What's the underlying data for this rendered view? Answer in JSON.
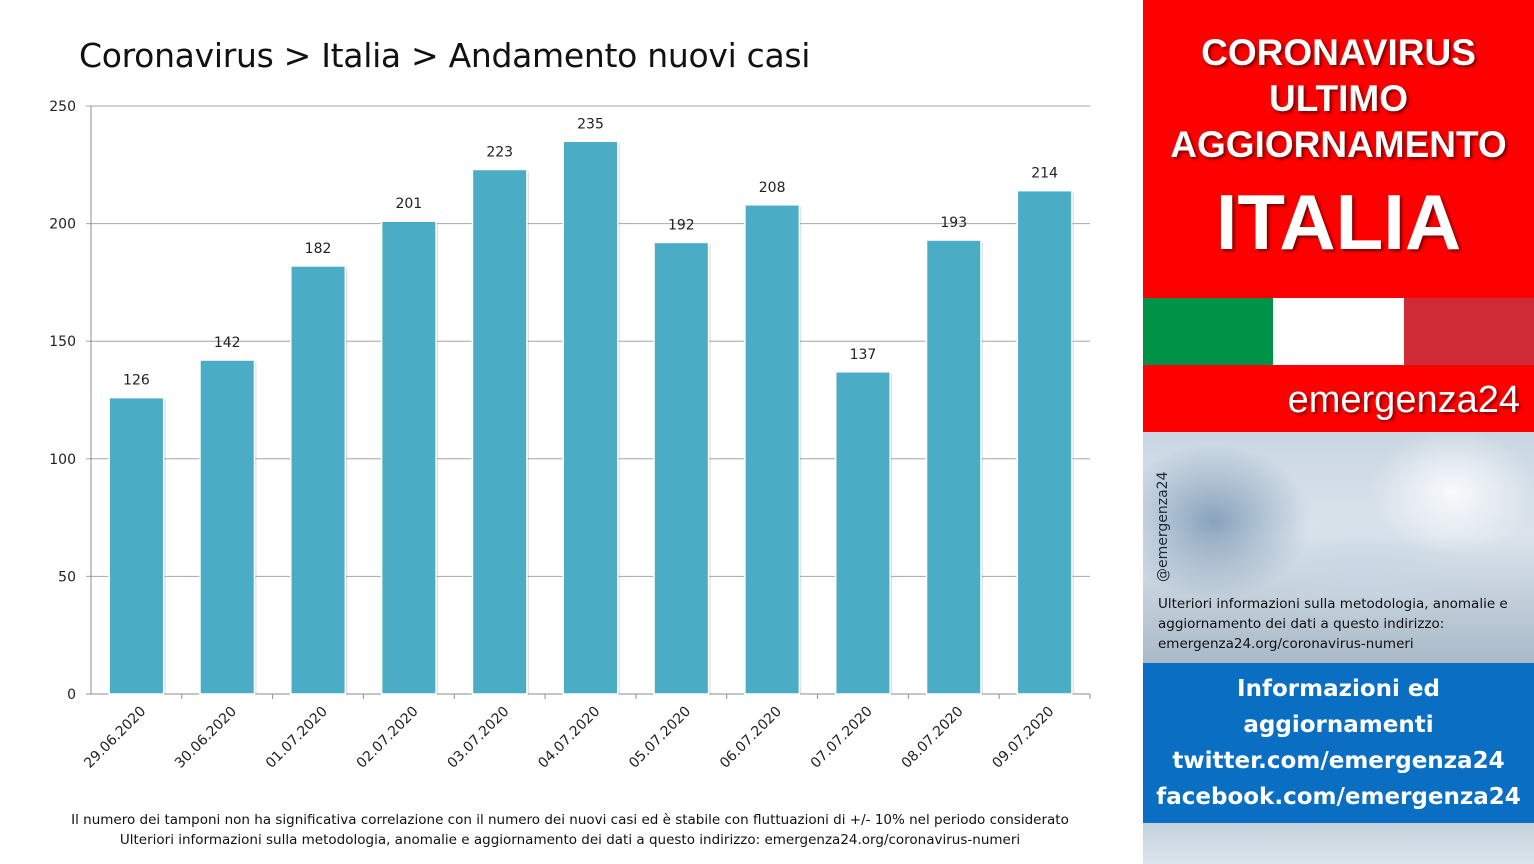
{
  "page": {
    "title": "Coronavirus > Italia > Andamento nuovi casi"
  },
  "chart_data": {
    "type": "bar",
    "title": "Coronavirus > Italia > Andamento nuovi casi",
    "categories": [
      "29.06.2020",
      "30.06.2020",
      "01.07.2020",
      "02.07.2020",
      "03.07.2020",
      "04.07.2020",
      "05.07.2020",
      "06.07.2020",
      "07.07.2020",
      "08.07.2020",
      "09.07.2020"
    ],
    "values": [
      126,
      142,
      182,
      201,
      223,
      235,
      192,
      208,
      137,
      193,
      214
    ],
    "ylim": [
      0,
      250
    ],
    "yticks": [
      0,
      50,
      100,
      150,
      200,
      250
    ],
    "grid": true,
    "bar_color": "#4bacc6",
    "data_labels": true
  },
  "footnotes": {
    "line1": "Il numero dei tamponi non ha significativa correlazione con il numero dei nuovi casi ed è stabile con fluttuazioni di +/- 10% nel periodo considerato",
    "line2": "Ulteriori informazioni sulla metodologia, anomalie e aggiornamento dei dati a questo indirizzo: emergenza24.org/coronavirus-numeri"
  },
  "sidebar": {
    "headline": [
      "CORONAVIRUS",
      "ULTIMO",
      "AGGIORNAMENTO",
      "ITALIA"
    ],
    "flag_colors": [
      "#009246",
      "#ffffff",
      "#ce2b37"
    ],
    "brand": "emergenza24",
    "handle": "@emergenza24",
    "method_text": "Ulteriori informazioni sulla metodologia, anomalie e aggiornamento dei dati a questo indirizzo: emergenza24.org/coronavirus-numeri",
    "info_lines": [
      "Informazioni ed",
      "aggiornamenti",
      "twitter.com/emergenza24",
      "facebook.com/emergenza24"
    ],
    "colors": {
      "red": "#ff0000",
      "blue": "#0a6fc2"
    }
  }
}
